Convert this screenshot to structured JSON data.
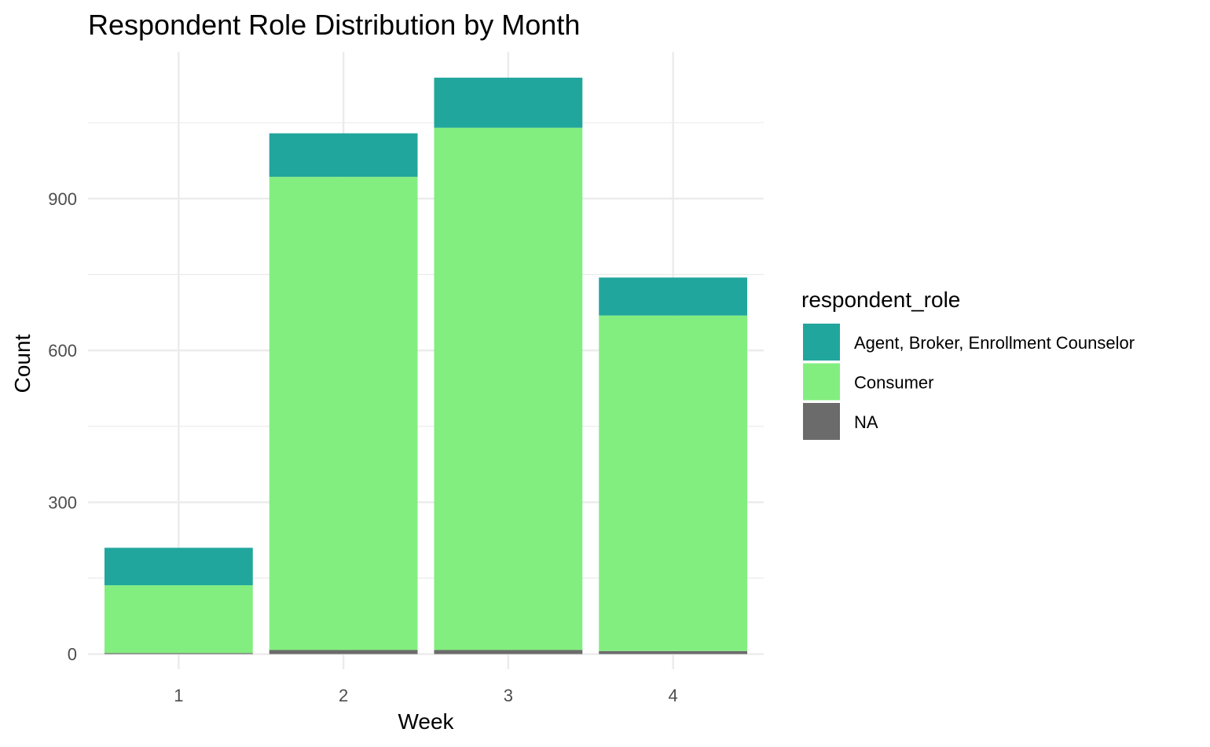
{
  "chart_data": {
    "type": "bar",
    "stacked": true,
    "title": "Respondent Role Distribution by Month",
    "xlabel": "Week",
    "ylabel": "Count",
    "categories": [
      "1",
      "2",
      "3",
      "4"
    ],
    "yticks": [
      0,
      300,
      600,
      900
    ],
    "ylim": [
      -30,
      1190
    ],
    "grid": true,
    "legend": {
      "title": "respondent_role",
      "placement": "right"
    },
    "series": [
      {
        "name": "NA",
        "color": "#6b6b6b",
        "values": [
          2,
          8,
          8,
          6
        ]
      },
      {
        "name": "Consumer",
        "color": "#83ee80",
        "values": [
          134,
          935,
          1032,
          663
        ]
      },
      {
        "name": "Agent, Broker, Enrollment Counselor",
        "color": "#21a69d",
        "values": [
          74,
          86,
          99,
          75
        ]
      }
    ],
    "legend_order": [
      "Agent, Broker, Enrollment Counselor",
      "Consumer",
      "NA"
    ]
  }
}
